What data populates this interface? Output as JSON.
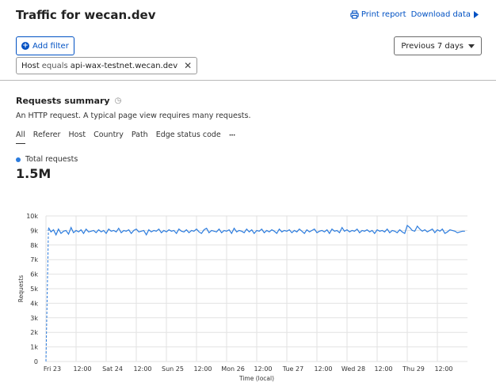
{
  "header": {
    "title": "Traffic for wecan.dev",
    "print_label": "Print report",
    "download_label": "Download data"
  },
  "filters": {
    "add_label": "Add filter",
    "chip": {
      "field": "Host",
      "operator": "equals",
      "value": "api-wax-testnet.wecan.dev"
    },
    "period_label": "Previous 7 days"
  },
  "summary": {
    "title": "Requests summary",
    "description": "An HTTP request. A typical page view requires many requests.",
    "tabs": [
      "All",
      "Referer",
      "Host",
      "Country",
      "Path",
      "Edge status code"
    ],
    "more": "•••",
    "legend_label": "Total requests",
    "total": "1.5M"
  },
  "colors": {
    "accent": "#0051c3",
    "series": "#2c7cde"
  },
  "chart_data": {
    "type": "line",
    "xlabel": "Time (local)",
    "ylabel": "Requests",
    "ylim": [
      0,
      10000
    ],
    "yticks": [
      0,
      1000,
      2000,
      3000,
      4000,
      5000,
      6000,
      7000,
      8000,
      9000,
      10000
    ],
    "ytick_labels": [
      "0",
      "1k",
      "2k",
      "3k",
      "4k",
      "5k",
      "6k",
      "7k",
      "8k",
      "9k",
      "10k"
    ],
    "xlim": [
      0,
      168
    ],
    "xticks": [
      0,
      12,
      24,
      36,
      48,
      60,
      72,
      84,
      96,
      108,
      120,
      132,
      144,
      156
    ],
    "xtick_labels": [
      "Fri 23",
      "12:00",
      "Sat 24",
      "12:00",
      "Sun 25",
      "12:00",
      "Mon 26",
      "12:00",
      "Tue 27",
      "12:00",
      "Wed 28",
      "12:00",
      "Thu 29",
      "12:00"
    ],
    "grid": true,
    "series": [
      {
        "name": "Total requests",
        "x": [
          0,
          1,
          2,
          3,
          4,
          5,
          6,
          7,
          8,
          9,
          10,
          11,
          12,
          13,
          14,
          15,
          16,
          17,
          18,
          19,
          20,
          21,
          22,
          23,
          24,
          25,
          26,
          27,
          28,
          29,
          30,
          31,
          32,
          33,
          34,
          35,
          36,
          37,
          38,
          39,
          40,
          41,
          42,
          43,
          44,
          45,
          46,
          47,
          48,
          49,
          50,
          51,
          52,
          53,
          54,
          55,
          56,
          57,
          58,
          59,
          60,
          61,
          62,
          63,
          64,
          65,
          66,
          67,
          68,
          69,
          70,
          71,
          72,
          73,
          74,
          75,
          76,
          77,
          78,
          79,
          80,
          81,
          82,
          83,
          84,
          85,
          86,
          87,
          88,
          89,
          90,
          91,
          92,
          93,
          94,
          95,
          96,
          97,
          98,
          99,
          100,
          101,
          102,
          103,
          104,
          105,
          106,
          107,
          108,
          109,
          110,
          111,
          112,
          113,
          114,
          115,
          116,
          117,
          118,
          119,
          120,
          121,
          122,
          123,
          124,
          125,
          126,
          127,
          128,
          129,
          130,
          131,
          132,
          133,
          134,
          135,
          136,
          137,
          138,
          139,
          140,
          141,
          142,
          143,
          144,
          145,
          146,
          147,
          148,
          149,
          150,
          151,
          152,
          153,
          154,
          155,
          156,
          157,
          158,
          159,
          160,
          161,
          162,
          163,
          164,
          165,
          166,
          167
        ],
        "y": [
          0,
          9200,
          8900,
          9050,
          8700,
          9100,
          8800,
          8950,
          9000,
          8750,
          9200,
          8850,
          9000,
          8900,
          9050,
          8800,
          9100,
          8900,
          8950,
          9000,
          8850,
          9050,
          8900,
          9000,
          8800,
          9100,
          8950,
          9000,
          8900,
          9150,
          8850,
          9000,
          8950,
          9050,
          8800,
          9000,
          9100,
          8900,
          8950,
          9000,
          8700,
          9050,
          8900,
          9000,
          8950,
          9100,
          8850,
          9000,
          8900,
          9050,
          8950,
          9000,
          8800,
          9100,
          8950,
          8900,
          9050,
          8850,
          9000,
          8950,
          9100,
          8900,
          8800,
          9050,
          9150,
          8850,
          9000,
          8950,
          8900,
          9100,
          8850,
          9000,
          8950,
          9050,
          8800,
          9150,
          8900,
          9000,
          8950,
          8850,
          9100,
          8900,
          9050,
          8800,
          9000,
          8950,
          9100,
          8850,
          9000,
          8900,
          9050,
          8950,
          8800,
          9100,
          8900,
          9000,
          8950,
          9050,
          8850,
          9000,
          8900,
          9100,
          8950,
          8800,
          9050,
          8900,
          9000,
          9100,
          8850,
          8950,
          9000,
          8900,
          9050,
          8800,
          9100,
          8950,
          9000,
          8850,
          9200,
          8950,
          9050,
          8900,
          9000,
          8950,
          9100,
          8850,
          9000,
          8950,
          9050,
          8900,
          9000,
          8800,
          9050,
          8950,
          9000,
          8900,
          9100,
          8850,
          9000,
          8950,
          8850,
          9050,
          8900,
          8800,
          9350,
          9200,
          9000,
          8950,
          9300,
          9100,
          8950,
          9050,
          8900,
          9000,
          9100,
          8850,
          9050,
          8950,
          9100,
          8800,
          8900,
          9050,
          9000,
          8950,
          8850,
          8900,
          8950,
          8950
        ]
      }
    ]
  }
}
